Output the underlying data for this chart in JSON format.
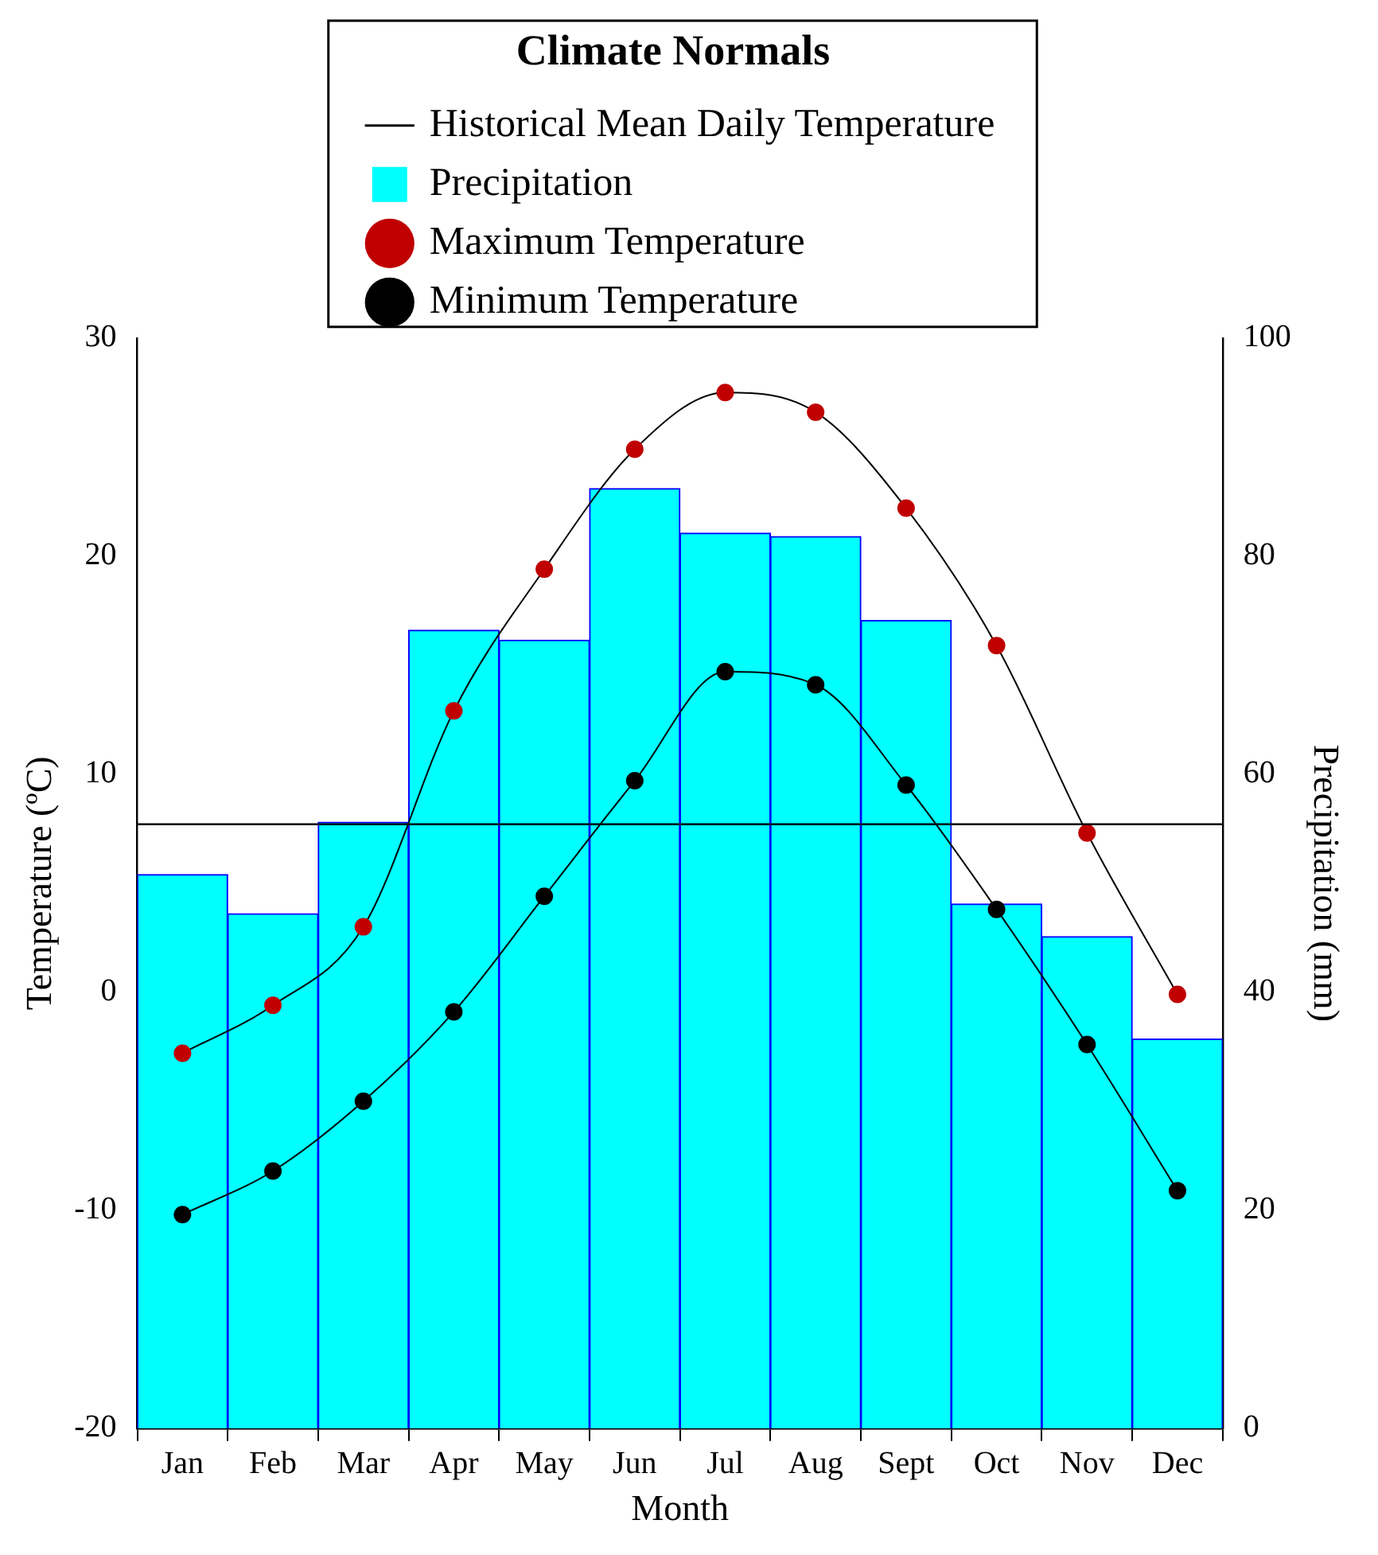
{
  "chart_data": {
    "type": "bar",
    "legend_title": "Climate Normals",
    "xlabel": "Month",
    "ylabel": "Temperature (ºC)",
    "y2label": "Precipitation (mm)",
    "categories": [
      "Jan",
      "Feb",
      "Mar",
      "Apr",
      "May",
      "Jun",
      "Jul",
      "Aug",
      "Sept",
      "Oct",
      "Nov",
      "Dec"
    ],
    "series": [
      {
        "name": "Precipitation",
        "axis": "y2",
        "color": "#00ffff",
        "values": [
          50.8,
          47.2,
          55.6,
          73.2,
          72.3,
          86.2,
          82.1,
          81.8,
          74.1,
          48.1,
          45.1,
          35.7
        ]
      },
      {
        "name": "Maximum Temperature",
        "type": "line",
        "axis": "y",
        "color": "#c00000",
        "values": [
          -2.8,
          -0.6,
          3.0,
          12.9,
          19.4,
          24.9,
          27.5,
          26.6,
          22.2,
          15.9,
          7.3,
          -0.1
        ]
      },
      {
        "name": "Minimum Temperature",
        "type": "line",
        "axis": "y",
        "color": "#000000",
        "values": [
          -10.2,
          -8.2,
          -5.0,
          -0.9,
          4.4,
          9.7,
          14.7,
          14.1,
          9.5,
          3.8,
          -2.4,
          -9.1
        ]
      }
    ],
    "ref_lines": [
      {
        "axis": "y",
        "value": 7.7,
        "label": "Historical Mean Daily Temperature",
        "color": "#000000"
      }
    ],
    "ylim": [
      -20,
      30
    ],
    "yticks": [
      -20,
      -10,
      0,
      10,
      20,
      30
    ],
    "y2lim": [
      0,
      100
    ],
    "y2ticks": [
      0,
      20,
      40,
      60,
      80,
      100
    ],
    "grid": false,
    "legend": "top",
    "marker": "circle",
    "line_style": "solid"
  }
}
